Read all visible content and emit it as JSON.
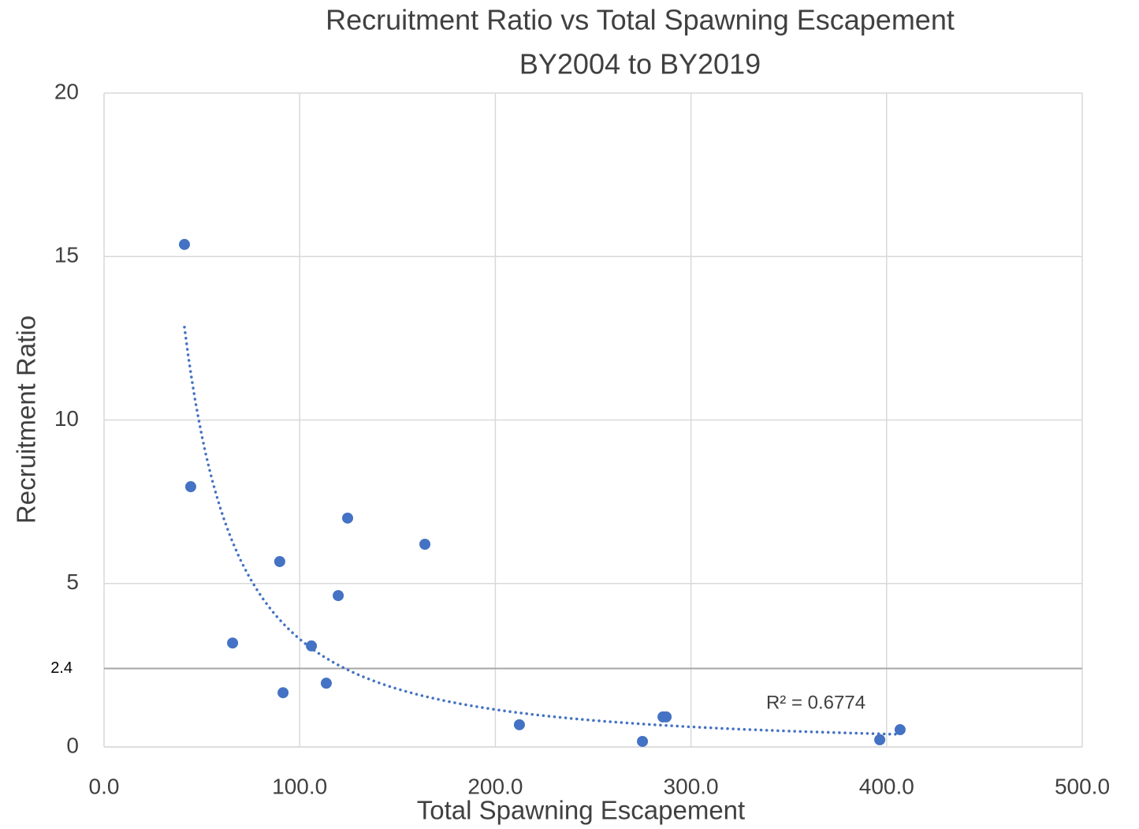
{
  "chart_data": {
    "type": "scatter",
    "title": [
      "Recruitment Ratio vs Total Spawning Escapement",
      "BY2004 to BY2019"
    ],
    "x_label": "Total Spawning Escapement",
    "y_label": "Recruitment Ratio",
    "series": [
      {
        "color": "#4472c4",
        "x": [
          41.1,
          44.3,
          65.7,
          89.8,
          91.5,
          106.0,
          113.6,
          119.7,
          124.5,
          164.0,
          212.3,
          275.2,
          285.7,
          287.3,
          396.5,
          406.9
        ],
        "values": [
          15.37,
          7.96,
          3.18,
          5.67,
          1.66,
          3.09,
          1.95,
          4.63,
          7.0,
          6.2,
          0.68,
          0.17,
          0.92,
          0.92,
          0.22,
          0.53
        ]
      }
    ],
    "trendline": {
      "type": "power",
      "label": "R² = 0.6774"
    },
    "xlim": [
      0,
      500
    ],
    "xticks": [
      {
        "value": 0,
        "label": "0.0"
      },
      {
        "value": 100,
        "label": "100.0"
      },
      {
        "value": 200,
        "label": "200.0"
      },
      {
        "value": 300,
        "label": "300.0"
      },
      {
        "value": 400,
        "label": "400.0"
      },
      {
        "value": 500,
        "label": "500.0"
      }
    ],
    "ylim": [
      0,
      20
    ],
    "yticks": [
      0,
      5,
      10,
      15,
      20
    ],
    "hlines": [
      2.4
    ],
    "grid": true
  }
}
